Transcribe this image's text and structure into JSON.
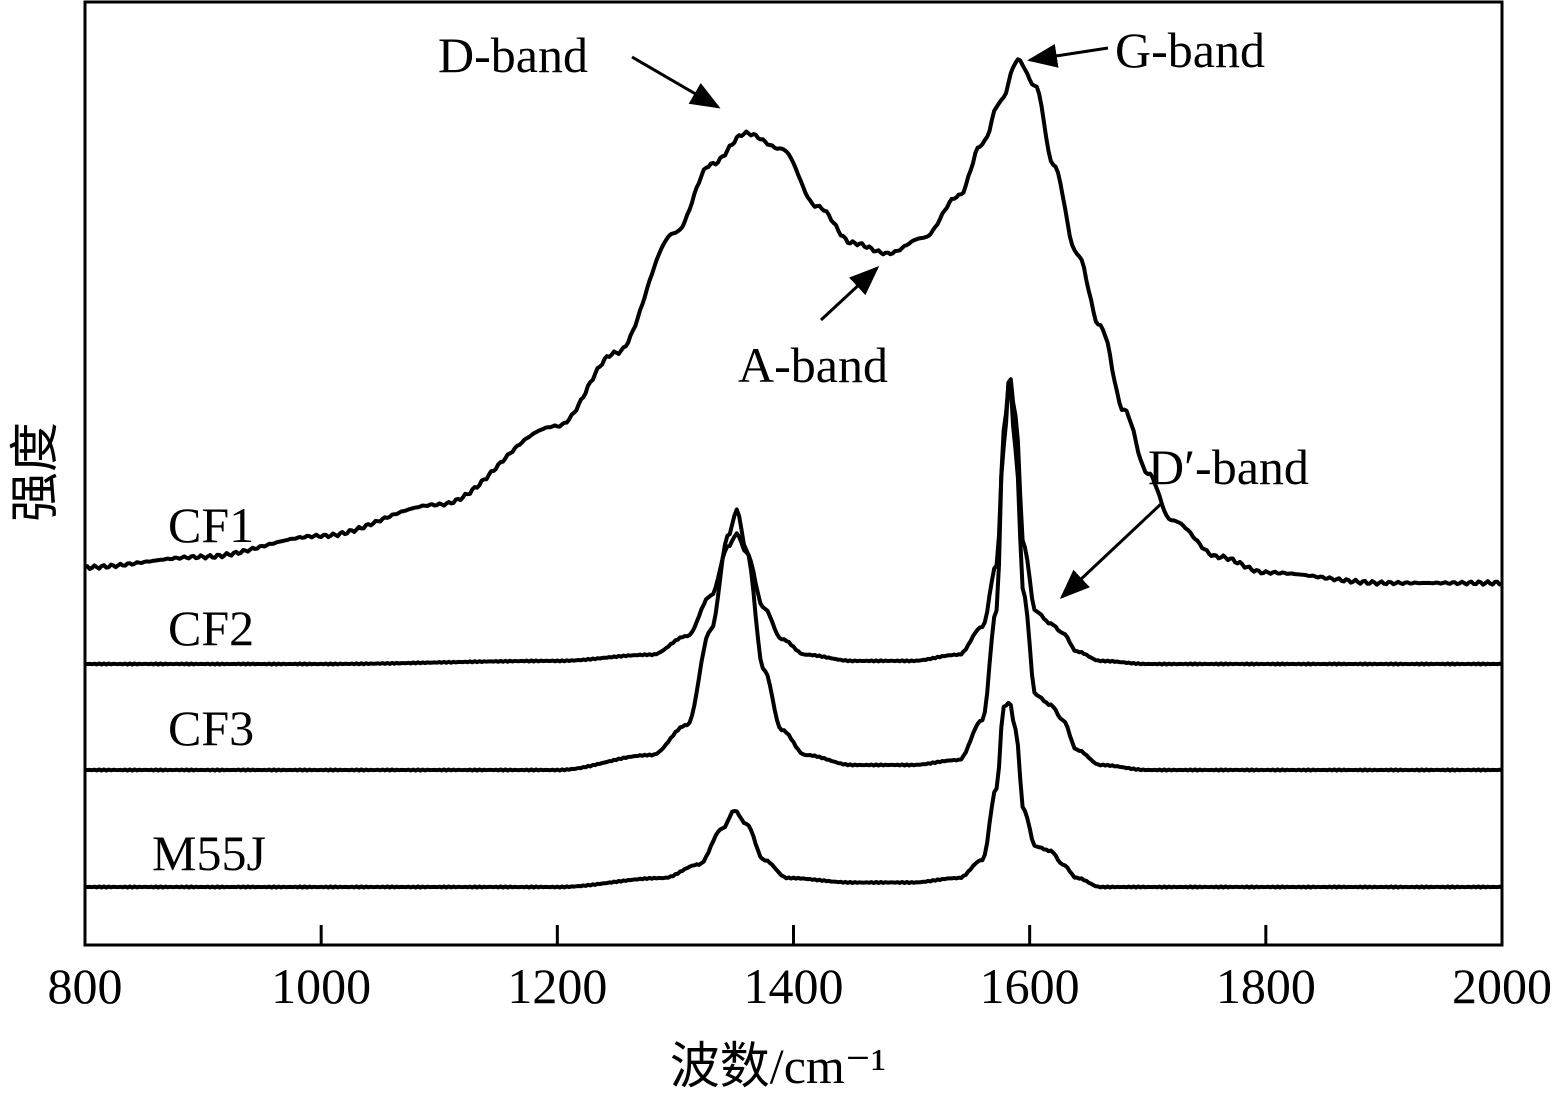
{
  "chart_data": {
    "type": "line",
    "xlabel": "波数/cm⁻¹",
    "ylabel": "强度",
    "xlim": [
      800,
      2000
    ],
    "xticks": [
      "800",
      "1000",
      "1200",
      "1400",
      "1600",
      "1800",
      "2000"
    ],
    "yticks_shown": false,
    "grid": false,
    "series": [
      {
        "name": "CF1",
        "points": [
          [
            800,
            0.03
          ],
          [
            900,
            0.05
          ],
          [
            1000,
            0.09
          ],
          [
            1100,
            0.15
          ],
          [
            1200,
            0.3
          ],
          [
            1250,
            0.44
          ],
          [
            1300,
            0.67
          ],
          [
            1330,
            0.8
          ],
          [
            1360,
            0.86
          ],
          [
            1390,
            0.83
          ],
          [
            1420,
            0.72
          ],
          [
            1450,
            0.65
          ],
          [
            1480,
            0.63
          ],
          [
            1510,
            0.66
          ],
          [
            1540,
            0.74
          ],
          [
            1560,
            0.84
          ],
          [
            1575,
            0.92
          ],
          [
            1590,
            1.0
          ],
          [
            1605,
            0.95
          ],
          [
            1620,
            0.8
          ],
          [
            1640,
            0.63
          ],
          [
            1660,
            0.49
          ],
          [
            1680,
            0.33
          ],
          [
            1700,
            0.21
          ],
          [
            1720,
            0.12
          ],
          [
            1760,
            0.05
          ],
          [
            1800,
            0.02
          ],
          [
            1900,
            0.0
          ],
          [
            2000,
            0.0
          ]
        ]
      },
      {
        "name": "CF2",
        "points": [
          [
            800,
            0.0
          ],
          [
            1000,
            0.0
          ],
          [
            1200,
            0.01
          ],
          [
            1280,
            0.03
          ],
          [
            1310,
            0.09
          ],
          [
            1330,
            0.22
          ],
          [
            1345,
            0.38
          ],
          [
            1352,
            0.42
          ],
          [
            1360,
            0.36
          ],
          [
            1375,
            0.18
          ],
          [
            1390,
            0.08
          ],
          [
            1410,
            0.03
          ],
          [
            1450,
            0.01
          ],
          [
            1500,
            0.01
          ],
          [
            1540,
            0.03
          ],
          [
            1560,
            0.12
          ],
          [
            1572,
            0.32
          ],
          [
            1578,
            0.7
          ],
          [
            1583,
            0.93
          ],
          [
            1588,
            0.8
          ],
          [
            1595,
            0.38
          ],
          [
            1605,
            0.17
          ],
          [
            1618,
            0.13
          ],
          [
            1628,
            0.1
          ],
          [
            1640,
            0.04
          ],
          [
            1660,
            0.01
          ],
          [
            1700,
            0.0
          ],
          [
            2000,
            0.0
          ]
        ]
      },
      {
        "name": "CF3",
        "points": [
          [
            800,
            0.0
          ],
          [
            1000,
            0.0
          ],
          [
            1200,
            0.0
          ],
          [
            1280,
            0.03
          ],
          [
            1310,
            0.09
          ],
          [
            1330,
            0.28
          ],
          [
            1345,
            0.47
          ],
          [
            1352,
            0.52
          ],
          [
            1360,
            0.44
          ],
          [
            1375,
            0.2
          ],
          [
            1390,
            0.08
          ],
          [
            1410,
            0.03
          ],
          [
            1450,
            0.01
          ],
          [
            1500,
            0.01
          ],
          [
            1540,
            0.02
          ],
          [
            1560,
            0.1
          ],
          [
            1572,
            0.32
          ],
          [
            1578,
            0.68
          ],
          [
            1583,
            0.78
          ],
          [
            1588,
            0.64
          ],
          [
            1595,
            0.35
          ],
          [
            1605,
            0.15
          ],
          [
            1618,
            0.13
          ],
          [
            1628,
            0.1
          ],
          [
            1640,
            0.04
          ],
          [
            1660,
            0.01
          ],
          [
            1700,
            0.0
          ],
          [
            2000,
            0.0
          ]
        ]
      },
      {
        "name": "M55J",
        "points": [
          [
            800,
            0.0
          ],
          [
            1000,
            0.0
          ],
          [
            1200,
            0.0
          ],
          [
            1290,
            0.02
          ],
          [
            1320,
            0.05
          ],
          [
            1340,
            0.13
          ],
          [
            1350,
            0.17
          ],
          [
            1360,
            0.14
          ],
          [
            1375,
            0.06
          ],
          [
            1395,
            0.02
          ],
          [
            1450,
            0.01
          ],
          [
            1500,
            0.01
          ],
          [
            1540,
            0.02
          ],
          [
            1560,
            0.06
          ],
          [
            1572,
            0.22
          ],
          [
            1578,
            0.4
          ],
          [
            1583,
            0.41
          ],
          [
            1588,
            0.35
          ],
          [
            1595,
            0.17
          ],
          [
            1605,
            0.09
          ],
          [
            1618,
            0.08
          ],
          [
            1628,
            0.05
          ],
          [
            1640,
            0.02
          ],
          [
            1660,
            0.0
          ],
          [
            2000,
            0.0
          ]
        ]
      }
    ],
    "annotations": [
      {
        "text": "D-band",
        "target": [
          1362,
          0.86
        ]
      },
      {
        "text": "G-band",
        "target": [
          1590,
          1.0
        ]
      },
      {
        "text": "A-band",
        "target": [
          1482,
          0.63
        ]
      },
      {
        "text": "D′-band",
        "target": [
          1620,
          0.13
        ]
      }
    ]
  }
}
